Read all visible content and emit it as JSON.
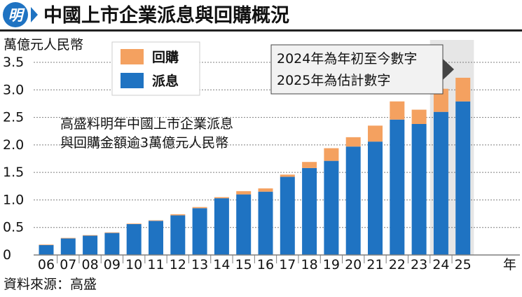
{
  "logo_text": "明",
  "colors": {
    "buyback": "#F4A160",
    "dividend": "#1F73C2",
    "logo_bg": "#1F73C2",
    "title_bar": "#222222",
    "grid": "#7F7F7F",
    "highlight_band": "#E6E6E6",
    "callout_bg": "#F2F2F2"
  },
  "chart_data": {
    "type": "bar",
    "stacked": true,
    "title": "中國上市企業派息與回購概況",
    "unit_label": "萬億元人民幣",
    "x_unit": "年",
    "categories": [
      "06",
      "07",
      "08",
      "09",
      "10",
      "11",
      "12",
      "13",
      "14",
      "15",
      "16",
      "17",
      "18",
      "19",
      "20",
      "21",
      "22",
      "23",
      "24",
      "25"
    ],
    "series": [
      {
        "name": "派息",
        "color": "#1F73C2",
        "values": [
          0.18,
          0.3,
          0.35,
          0.4,
          0.56,
          0.62,
          0.72,
          0.85,
          1.03,
          1.1,
          1.15,
          1.42,
          1.58,
          1.71,
          1.97,
          2.06,
          2.46,
          2.38,
          2.6,
          2.79
        ]
      },
      {
        "name": "回購",
        "color": "#F4A160",
        "values": [
          0.01,
          0.01,
          0.01,
          0.01,
          0.01,
          0.01,
          0.02,
          0.02,
          0.02,
          0.06,
          0.06,
          0.04,
          0.11,
          0.23,
          0.17,
          0.29,
          0.33,
          0.26,
          0.42,
          0.43
        ]
      }
    ],
    "yticks": [
      "0",
      "0.5",
      "1.0",
      "1.5",
      "2.0",
      "2.5",
      "3.0",
      "3.5"
    ],
    "ylim": [
      0,
      3.5
    ],
    "grid": true,
    "highlight_categories": [
      "24",
      "25"
    ],
    "legend_position": "top-left",
    "annotation_callout": [
      "2024年為年初至今數字",
      "2025年為估計數字"
    ],
    "annotation_text": [
      "高盛料明年中國上市企業派息",
      "與回購金額逾3萬億元人民幣"
    ]
  },
  "source": "資料來源：高盛"
}
